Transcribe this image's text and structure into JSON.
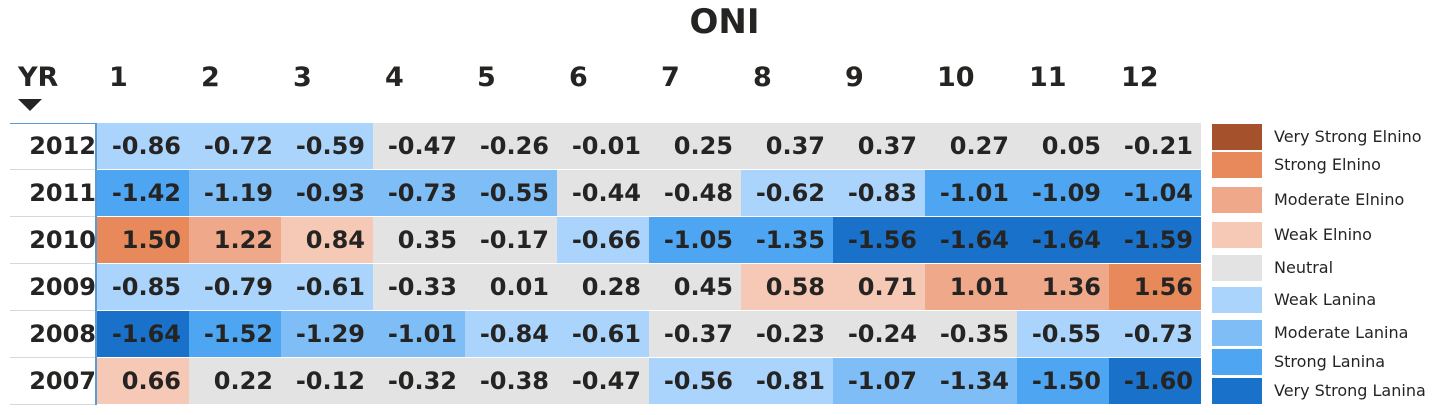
{
  "title": "ONI",
  "header": {
    "yr_label": "YR"
  },
  "chart_data": {
    "type": "table",
    "columns": [
      "1",
      "2",
      "3",
      "4",
      "5",
      "6",
      "7",
      "8",
      "9",
      "10",
      "11",
      "12"
    ],
    "rows": [
      {
        "yr": "2012",
        "values": [
          "-0.86",
          "-0.72",
          "-0.59",
          "-0.47",
          "-0.26",
          "-0.01",
          "0.25",
          "0.37",
          "0.37",
          "0.27",
          "0.05",
          "-0.21"
        ],
        "cats": [
          "WL",
          "WL",
          "WL",
          "N",
          "N",
          "N",
          "N",
          "N",
          "N",
          "N",
          "N",
          "N"
        ]
      },
      {
        "yr": "2011",
        "values": [
          "-1.42",
          "-1.19",
          "-0.93",
          "-0.73",
          "-0.55",
          "-0.44",
          "-0.48",
          "-0.62",
          "-0.83",
          "-1.01",
          "-1.09",
          "-1.04"
        ],
        "cats": [
          "SL",
          "ML",
          "ML",
          "ML",
          "ML",
          "N",
          "N",
          "WL",
          "WL",
          "SL",
          "SL",
          "SL"
        ]
      },
      {
        "yr": "2010",
        "values": [
          "1.50",
          "1.22",
          "0.84",
          "0.35",
          "-0.17",
          "-0.66",
          "-1.05",
          "-1.35",
          "-1.56",
          "-1.64",
          "-1.64",
          "-1.59"
        ],
        "cats": [
          "SE",
          "ME",
          "WE",
          "N",
          "N",
          "WL",
          "SL",
          "SL",
          "VSL",
          "VSL",
          "VSL",
          "VSL"
        ]
      },
      {
        "yr": "2009",
        "values": [
          "-0.85",
          "-0.79",
          "-0.61",
          "-0.33",
          "0.01",
          "0.28",
          "0.45",
          "0.58",
          "0.71",
          "1.01",
          "1.36",
          "1.56"
        ],
        "cats": [
          "WL",
          "WL",
          "WL",
          "N",
          "N",
          "N",
          "N",
          "WE",
          "WE",
          "ME",
          "ME",
          "SE"
        ]
      },
      {
        "yr": "2008",
        "values": [
          "-1.64",
          "-1.52",
          "-1.29",
          "-1.01",
          "-0.84",
          "-0.61",
          "-0.37",
          "-0.23",
          "-0.24",
          "-0.35",
          "-0.55",
          "-0.73"
        ],
        "cats": [
          "VSL",
          "SL",
          "ML",
          "ML",
          "WL",
          "WL",
          "N",
          "N",
          "N",
          "N",
          "WL",
          "WL"
        ]
      },
      {
        "yr": "2007",
        "values": [
          "0.66",
          "0.22",
          "-0.12",
          "-0.32",
          "-0.38",
          "-0.47",
          "-0.56",
          "-0.81",
          "-1.07",
          "-1.34",
          "-1.50",
          "-1.60"
        ],
        "cats": [
          "WE",
          "N",
          "N",
          "N",
          "N",
          "N",
          "WL",
          "WL",
          "ML",
          "ML",
          "SL",
          "VSL"
        ]
      }
    ]
  },
  "palette": {
    "VSE": "#a5522c",
    "SE": "#e8895c",
    "ME": "#efa98a",
    "WE": "#f5c9b6",
    "N": "#e3e3e3",
    "WL": "#aad4fb",
    "ML": "#7ebdf5",
    "SL": "#4ea6f3",
    "VSL": "#1a71c9"
  },
  "legend": [
    {
      "label": "Very Strong Elnino",
      "key": "VSE"
    },
    {
      "label": "Strong Elnino",
      "key": "SE"
    },
    {
      "label": "Moderate Elnino",
      "key": "ME"
    },
    {
      "label": "Weak Elnino",
      "key": "WE"
    },
    {
      "label": "Neutral",
      "key": "N"
    },
    {
      "label": "Weak Lanina",
      "key": "WL"
    },
    {
      "label": "Moderate Lanina",
      "key": "ML"
    },
    {
      "label": "Strong Lanina",
      "key": "SL"
    },
    {
      "label": "Very Strong Lanina",
      "key": "VSL"
    }
  ]
}
